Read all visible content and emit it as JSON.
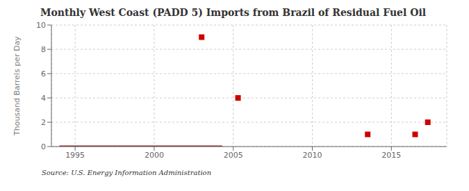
{
  "chart_data": {
    "type": "scatter",
    "title": "Monthly West Coast (PADD 5) Imports from Brazil of Residual Fuel Oil",
    "ylabel": "Thousand Barrels per Day",
    "source": "Source: U.S. Energy Information Administration",
    "xlim": [
      1993.5,
      2018.5
    ],
    "ylim": [
      0,
      10
    ],
    "xticks": [
      1995,
      2000,
      2005,
      2010,
      2015
    ],
    "yticks": [
      0,
      2,
      4,
      6,
      8,
      10
    ],
    "grid": true,
    "series": [
      {
        "type": "line",
        "color": "#8b1a1a",
        "line_style": "solid",
        "x": [
          1994.0,
          2004.3
        ],
        "values": [
          0,
          0
        ]
      },
      {
        "type": "scatter",
        "color": "#cc0000",
        "marker": "square",
        "x": [
          2003,
          2005.3,
          2013.5,
          2016.5,
          2017.3
        ],
        "values": [
          9,
          4,
          1,
          1,
          2
        ]
      }
    ]
  }
}
